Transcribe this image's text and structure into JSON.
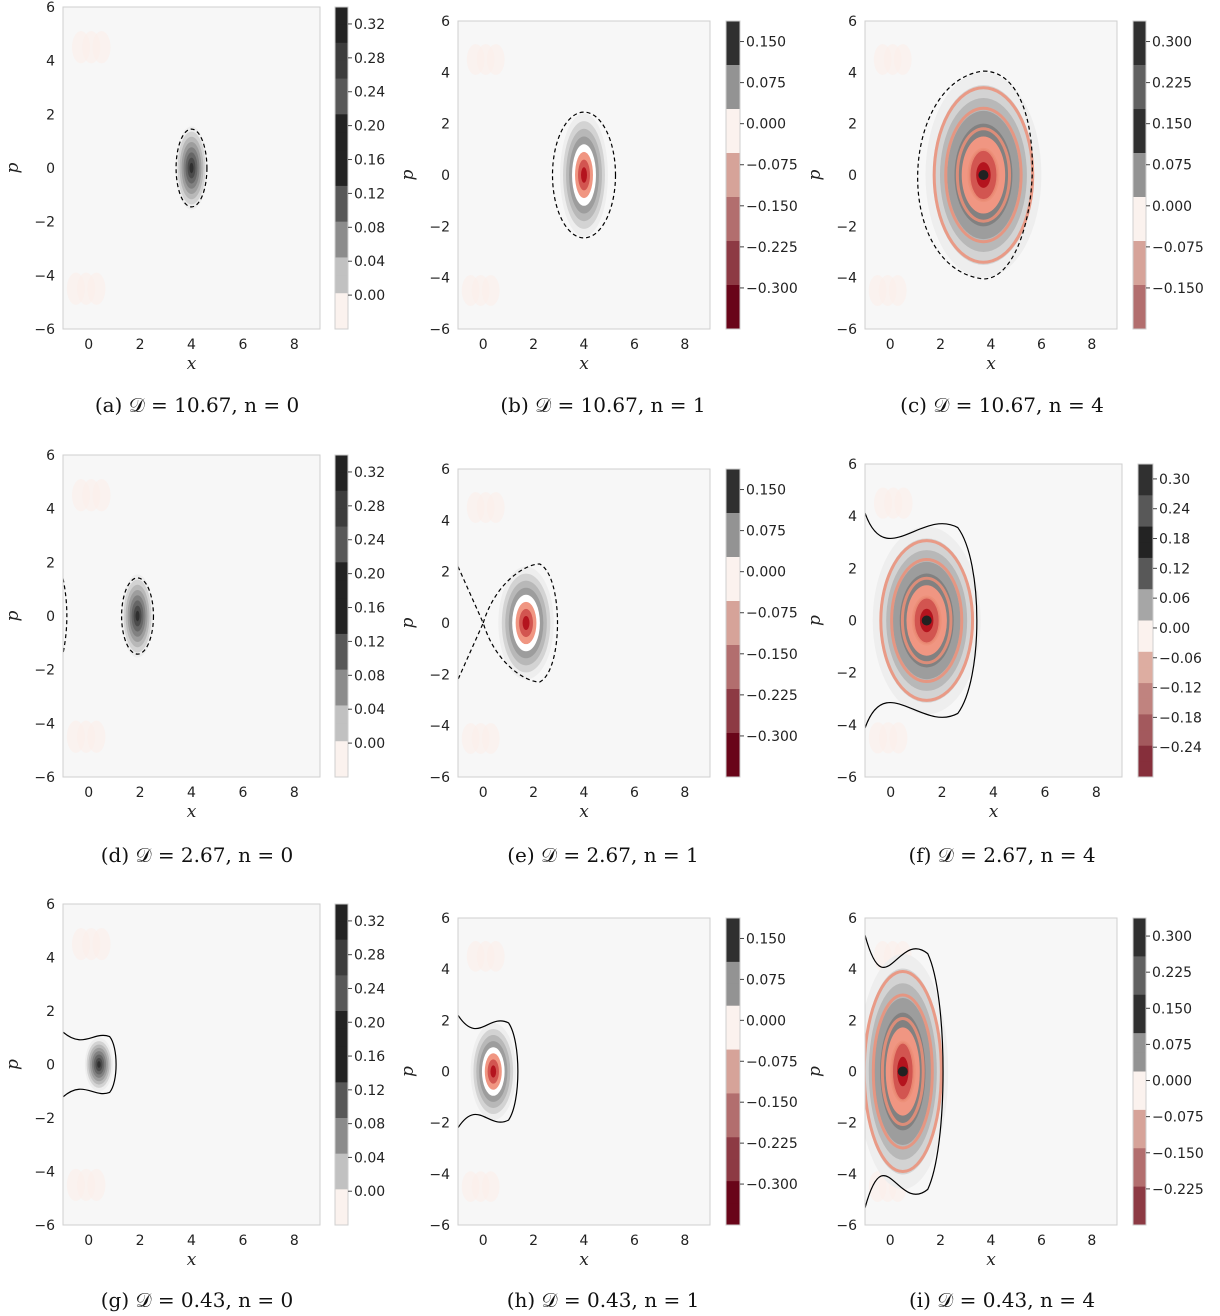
{
  "figure": {
    "xlabel": "x",
    "ylabel": "p",
    "x_ticks": [
      "0",
      "2",
      "4",
      "6",
      "8"
    ],
    "y_ticks": [
      "−6",
      "−4",
      "−2",
      "0",
      "2",
      "4",
      "6"
    ],
    "colors": {
      "background": "#f7f7f7",
      "positive_map": "greys",
      "negative_map": "reds",
      "contour": "#000000"
    }
  },
  "chart_data": [
    {
      "panel": "a",
      "type": "contour",
      "caption": "(a) 𝒟 = 10.67, n = 0",
      "xlim": [
        -1,
        9
      ],
      "ylim": [
        -6,
        6
      ],
      "center_x": 4.0,
      "center_y": 0.0,
      "contour_style": "dashed",
      "colorbar_ticks": [
        "0.32",
        "0.28",
        "0.24",
        "0.20",
        "0.16",
        "0.12",
        "0.08",
        "0.04",
        "0.00"
      ]
    },
    {
      "panel": "b",
      "type": "contour",
      "caption": "(b) 𝒟 = 10.67, n = 1",
      "xlim": [
        -1,
        9
      ],
      "ylim": [
        -6,
        6
      ],
      "center_x": 4.0,
      "center_y": 0.0,
      "contour_style": "dashed",
      "colorbar_ticks": [
        "0.150",
        "0.075",
        "0.000",
        "−0.075",
        "−0.150",
        "−0.225",
        "−0.300"
      ]
    },
    {
      "panel": "c",
      "type": "contour",
      "caption": "(c) 𝒟 = 10.67, n = 4",
      "xlim": [
        -1,
        9
      ],
      "ylim": [
        -6,
        6
      ],
      "center_x": 3.7,
      "center_y": 0.0,
      "contour_style": "dashed",
      "colorbar_ticks": [
        "0.300",
        "0.225",
        "0.150",
        "0.075",
        "0.000",
        "−0.075",
        "−0.150"
      ]
    },
    {
      "panel": "d",
      "type": "contour",
      "caption": "(d) 𝒟 = 2.67, n = 0",
      "xlim": [
        -1,
        9
      ],
      "ylim": [
        -6,
        6
      ],
      "center_x": 1.9,
      "center_y": 0.0,
      "contour_style": "dashed",
      "colorbar_ticks": [
        "0.32",
        "0.28",
        "0.24",
        "0.20",
        "0.16",
        "0.12",
        "0.08",
        "0.04",
        "0.00"
      ]
    },
    {
      "panel": "e",
      "type": "contour",
      "caption": "(e) 𝒟 = 2.67, n = 1",
      "xlim": [
        -1,
        9
      ],
      "ylim": [
        -6,
        6
      ],
      "center_x": 1.7,
      "center_y": 0.0,
      "contour_style": "dashed",
      "colorbar_ticks": [
        "0.150",
        "0.075",
        "0.000",
        "−0.075",
        "−0.150",
        "−0.225",
        "−0.300"
      ]
    },
    {
      "panel": "f",
      "type": "contour",
      "caption": "(f) 𝒟 = 2.67, n = 4",
      "xlim": [
        -1,
        9
      ],
      "ylim": [
        -6,
        6
      ],
      "center_x": 1.4,
      "center_y": 0.0,
      "contour_style": "solid",
      "colorbar_ticks": [
        "0.30",
        "0.24",
        "0.18",
        "0.12",
        "0.06",
        "0.00",
        "−0.06",
        "−0.12",
        "−0.18",
        "−0.24"
      ]
    },
    {
      "panel": "g",
      "type": "contour",
      "caption": "(g) 𝒟 = 0.43, n = 0",
      "xlim": [
        -1,
        9
      ],
      "ylim": [
        -6,
        6
      ],
      "center_x": 0.4,
      "center_y": 0.0,
      "contour_style": "solid",
      "colorbar_ticks": [
        "0.32",
        "0.28",
        "0.24",
        "0.20",
        "0.16",
        "0.12",
        "0.08",
        "0.04",
        "0.00"
      ]
    },
    {
      "panel": "h",
      "type": "contour",
      "caption": "(h) 𝒟 = 0.43, n = 1",
      "xlim": [
        -1,
        9
      ],
      "ylim": [
        -6,
        6
      ],
      "center_x": 0.4,
      "center_y": 0.0,
      "contour_style": "solid",
      "colorbar_ticks": [
        "0.150",
        "0.075",
        "0.000",
        "−0.075",
        "−0.150",
        "−0.225",
        "−0.300"
      ]
    },
    {
      "panel": "i",
      "type": "contour",
      "caption": "(i) 𝒟 = 0.43, n = 4",
      "xlim": [
        -1,
        9
      ],
      "ylim": [
        -6,
        6
      ],
      "center_x": 0.5,
      "center_y": 0.0,
      "contour_style": "solid",
      "colorbar_ticks": [
        "0.300",
        "0.225",
        "0.150",
        "0.075",
        "0.000",
        "−0.075",
        "−0.150",
        "−0.225"
      ]
    }
  ]
}
